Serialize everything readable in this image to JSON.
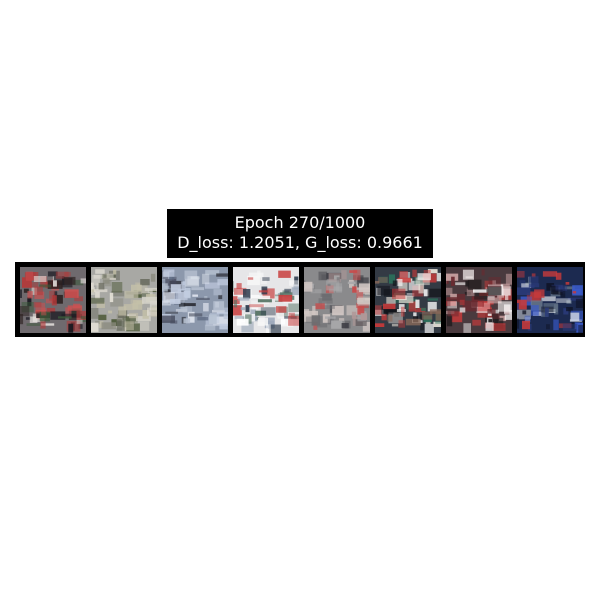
{
  "figure": {
    "title_line1": "Epoch 270/1000",
    "title_line2": "D_loss: 1.2051, G_loss: 0.9661"
  },
  "samples": [
    {
      "name": "generated-sample-1",
      "bg": "#6f6a6e",
      "colors": [
        "#2b2020",
        "#b23a3a",
        "#e8e4e0",
        "#3a5a3a",
        "#1a1a22",
        "#d05050"
      ]
    },
    {
      "name": "generated-sample-2",
      "bg": "#a8a8a4",
      "colors": [
        "#8a8a7e",
        "#d8d6cc",
        "#4e5a3a",
        "#c4c0a8",
        "#6a6c60",
        "#e6e2d8"
      ]
    },
    {
      "name": "generated-sample-3",
      "bg": "#8c98ac",
      "colors": [
        "#c2cce0",
        "#2a2c34",
        "#5e6a82",
        "#b8c2d2",
        "#44485a",
        "#dfe4ee"
      ]
    },
    {
      "name": "generated-sample-4",
      "bg": "#e6e6e8",
      "colors": [
        "#f6f6f6",
        "#4f6e5e",
        "#c84040",
        "#2d3a4c",
        "#9aa6b8",
        "#ffffff"
      ]
    },
    {
      "name": "generated-sample-5",
      "bg": "#8a8a8c",
      "colors": [
        "#6c6c70",
        "#b09898",
        "#c94a4a",
        "#3e3e44",
        "#a8a8aa",
        "#d2c8c4"
      ]
    },
    {
      "name": "generated-sample-6",
      "bg": "#333a44",
      "colors": [
        "#e8e2d8",
        "#c83a3a",
        "#2c6f5a",
        "#12141a",
        "#8a6a5a",
        "#f2f2f2"
      ]
    },
    {
      "name": "generated-sample-7",
      "bg": "#4a3a3e",
      "colors": [
        "#f0e8e8",
        "#d03a3a",
        "#1e1a1c",
        "#c8a0a0",
        "#6a2a30",
        "#ffffff"
      ]
    },
    {
      "name": "generated-sample-8",
      "bg": "#1c2a50",
      "colors": [
        "#3a5ac8",
        "#e0e4ea",
        "#c83a3a",
        "#0e1222",
        "#6a7a8c",
        "#2a3a7a"
      ]
    }
  ]
}
